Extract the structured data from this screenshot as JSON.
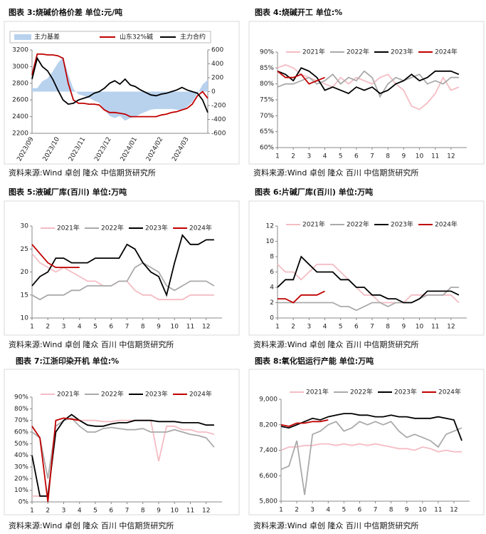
{
  "chart_data": [
    {
      "type": "line",
      "title": "图表 3:烧碱价格价差 单位:元/吨",
      "source": "资料来源:Wind 卓创 隆众 中信期货研究所",
      "categories": [
        "2023/09",
        null,
        null,
        null,
        null,
        "2023/10",
        null,
        null,
        null,
        null,
        "2023/11",
        null,
        null,
        null,
        null,
        "2023/12",
        null,
        null,
        null,
        null,
        "2024/01",
        null,
        null,
        null,
        null,
        "2024/02",
        null,
        null,
        null,
        null,
        "2024/03",
        null,
        null,
        null,
        null
      ],
      "ylim": [
        2200,
        3200
      ],
      "yticks": [
        2200,
        2400,
        2600,
        2800,
        3000,
        3200
      ],
      "y2lim": [
        -600,
        600
      ],
      "y2ticks": [
        -600,
        -400,
        -200,
        0,
        200,
        400,
        600
      ],
      "series": [
        {
          "name": "主力基差",
          "color": "#b8d2ee",
          "kind": "area",
          "axis": "y2",
          "values": [
            50,
            50,
            150,
            190,
            290,
            410,
            500,
            250,
            40,
            -40,
            -60,
            -90,
            -130,
            -160,
            -260,
            -350,
            -380,
            -350,
            -420,
            -380,
            -360,
            -320,
            -290,
            -260,
            -250,
            -250,
            -250,
            -250,
            -260,
            -270,
            -220,
            -150,
            -30,
            100,
            170
          ]
        },
        {
          "name": "山东32%碱",
          "color": "#c00000",
          "values": [
            2900,
            3150,
            3150,
            3140,
            3140,
            3130,
            3100,
            2800,
            2600,
            2560,
            2560,
            2550,
            2550,
            2540,
            2480,
            2450,
            2450,
            2440,
            2430,
            2400,
            2400,
            2400,
            2400,
            2400,
            2400,
            2420,
            2430,
            2450,
            2460,
            2480,
            2500,
            2550,
            2650,
            2700,
            2620
          ]
        },
        {
          "name": "主力合约",
          "color": "#000000",
          "values": [
            2850,
            3100,
            3000,
            2950,
            2850,
            2720,
            2600,
            2550,
            2560,
            2600,
            2620,
            2640,
            2680,
            2700,
            2740,
            2800,
            2830,
            2790,
            2850,
            2780,
            2760,
            2720,
            2690,
            2660,
            2650,
            2670,
            2680,
            2700,
            2720,
            2750,
            2720,
            2700,
            2680,
            2600,
            2450
          ]
        }
      ]
    },
    {
      "type": "line",
      "title": "图表 4:烧碱开工 单位:%",
      "source": "资料来源:Wind 卓创 隆众 百川 中信期货研究所",
      "x": [
        1,
        1.5,
        2,
        2.5,
        3,
        3.5,
        4,
        4.5,
        5,
        5.5,
        6,
        6.5,
        7,
        7.5,
        8,
        8.5,
        9,
        9.5,
        10,
        10.5,
        11,
        11.5,
        12,
        12.5
      ],
      "xlim": [
        1,
        13
      ],
      "xticks": [
        1,
        2,
        3,
        4,
        5,
        6,
        7,
        8,
        9,
        10,
        11,
        12
      ],
      "ylim": [
        60,
        90
      ],
      "yticks": [
        {
          "value": 60,
          "label": "60%"
        },
        {
          "value": 65,
          "label": "65%"
        },
        {
          "value": 70,
          "label": "70%"
        },
        {
          "value": 75,
          "label": "75%"
        },
        {
          "value": 80,
          "label": "80%"
        },
        {
          "value": 85,
          "label": "85%"
        },
        {
          "value": 90,
          "label": "90%"
        }
      ],
      "series": [
        {
          "name": "2021年",
          "color": "#f4bcc4",
          "values": [
            85,
            86,
            85,
            83,
            82,
            81,
            80,
            79,
            82,
            80,
            82,
            81,
            80,
            82,
            83,
            80,
            78,
            73,
            72,
            74,
            77,
            82,
            78,
            79
          ]
        },
        {
          "name": "2022年",
          "color": "#aaaaaa",
          "values": [
            79,
            80,
            80,
            81,
            82,
            80,
            81,
            83,
            80,
            82,
            81,
            84,
            82,
            76,
            80,
            82,
            81,
            82,
            83,
            80,
            81,
            80,
            82,
            82
          ]
        },
        {
          "name": "2023年",
          "color": "#000000",
          "values": [
            84,
            83,
            81,
            85,
            84,
            82,
            78,
            79,
            78,
            77,
            79,
            78,
            79,
            77,
            78,
            80,
            81,
            83,
            81,
            82,
            84,
            84,
            84,
            83
          ]
        },
        {
          "name": "2024年",
          "color": "#c00000",
          "values": [
            84,
            82,
            82,
            83,
            80,
            81,
            82,
            null,
            null,
            null,
            null,
            null,
            null,
            null,
            null,
            null,
            null,
            null,
            null,
            null,
            null,
            null,
            null,
            null
          ]
        }
      ]
    },
    {
      "type": "line",
      "title": "图表 5:液碱厂库(百川) 单位:万吨",
      "source": "资料来源:Wind 卓创 隆众 百川 中信期货研究所",
      "x": [
        1,
        1.5,
        2,
        2.5,
        3,
        3.5,
        4,
        4.5,
        5,
        5.5,
        6,
        6.5,
        7,
        7.5,
        8,
        8.5,
        9,
        9.5,
        10,
        10.5,
        11,
        11.5,
        12,
        12.5
      ],
      "xlim": [
        1,
        13
      ],
      "xticks": [
        1,
        2,
        3,
        4,
        5,
        6,
        7,
        8,
        9,
        10,
        11,
        12
      ],
      "ylim": [
        10,
        30
      ],
      "yticks": [
        10,
        15,
        20,
        25,
        30
      ],
      "series": [
        {
          "name": "2021年",
          "color": "#f4bcc4",
          "values": [
            24,
            22,
            21,
            20,
            21,
            20,
            19,
            18,
            18,
            17,
            17,
            18,
            18,
            16,
            15,
            15,
            14,
            14,
            14,
            14,
            15,
            15,
            15,
            15
          ]
        },
        {
          "name": "2022年",
          "color": "#aaaaaa",
          "values": [
            15,
            14,
            15,
            15,
            15,
            16,
            16,
            17,
            17,
            17,
            17,
            18,
            18,
            21,
            22,
            21,
            20,
            17,
            16,
            17,
            18,
            18,
            18,
            17
          ]
        },
        {
          "name": "2023年",
          "color": "#000000",
          "values": [
            17,
            19,
            20,
            23,
            23,
            22,
            22,
            22,
            23,
            23,
            23,
            23,
            26,
            25,
            22,
            20,
            19,
            15,
            22,
            28,
            26,
            26,
            27,
            27
          ]
        },
        {
          "name": "2024年",
          "color": "#c00000",
          "values": [
            26,
            24,
            22,
            21,
            21,
            21,
            21,
            null,
            null,
            null,
            null,
            null,
            null,
            null,
            null,
            null,
            null,
            null,
            null,
            null,
            null,
            null,
            null,
            null
          ]
        }
      ]
    },
    {
      "type": "line",
      "title": "图表 6:片碱厂库(百川) 单位:万吨",
      "source": "资料来源:Wind 卓创 隆众 百川 中信期货研究所",
      "x": [
        1,
        1.5,
        2,
        2.5,
        3,
        3.5,
        4,
        4.5,
        5,
        5.5,
        6,
        6.5,
        7,
        7.5,
        8,
        8.5,
        9,
        9.5,
        10,
        10.5,
        11,
        11.5,
        12,
        12.5
      ],
      "xlim": [
        1,
        13
      ],
      "xticks": [
        1,
        2,
        3,
        4,
        5,
        6,
        7,
        8,
        9,
        10,
        11,
        12
      ],
      "ylim": [
        0,
        12
      ],
      "yticks": [
        0,
        2,
        4,
        6,
        8,
        10,
        12
      ],
      "series": [
        {
          "name": "2021年",
          "color": "#f4bcc4",
          "values": [
            7,
            6,
            6,
            5,
            6,
            7,
            7,
            7,
            6,
            5,
            4,
            3,
            3,
            2,
            2,
            2,
            2,
            3,
            3,
            3,
            3,
            3,
            3,
            2
          ]
        },
        {
          "name": "2022年",
          "color": "#aaaaaa",
          "values": [
            2,
            2,
            2,
            2,
            2,
            2,
            2,
            2,
            1.5,
            1.5,
            1,
            1.5,
            2,
            2,
            1.5,
            2,
            2,
            2,
            2.5,
            3,
            3,
            3,
            4,
            4
          ]
        },
        {
          "name": "2023年",
          "color": "#000000",
          "values": [
            4,
            5,
            5,
            8,
            7,
            6,
            6,
            6,
            5,
            5,
            4,
            4,
            3,
            3,
            2.5,
            2.5,
            2,
            2,
            2.5,
            3.5,
            3.5,
            3.5,
            3.5,
            3
          ]
        },
        {
          "name": "2024年",
          "color": "#c00000",
          "values": [
            2.5,
            2.5,
            2,
            3,
            3,
            3,
            3.5,
            null,
            null,
            null,
            null,
            null,
            null,
            null,
            null,
            null,
            null,
            null,
            null,
            null,
            null,
            null,
            null,
            null
          ]
        }
      ]
    },
    {
      "type": "line",
      "title": "图表 7:江浙印染开机 单位:%",
      "source": "资料来源:Wind 卓创 隆众 百川 中信期货研究所",
      "x": [
        1,
        1.5,
        2,
        2.5,
        3,
        3.5,
        4,
        4.5,
        5,
        5.5,
        6,
        6.5,
        7,
        7.5,
        8,
        8.5,
        9,
        9.5,
        10,
        10.5,
        11,
        11.5,
        12,
        12.5
      ],
      "xlim": [
        1,
        13
      ],
      "xticks": [
        1,
        2,
        3,
        4,
        5,
        6,
        7,
        8,
        9,
        10,
        11,
        12
      ],
      "ylim": [
        0,
        90
      ],
      "yticks": [
        {
          "value": 0,
          "label": "0%"
        },
        {
          "value": 10,
          "label": "10%"
        },
        {
          "value": 20,
          "label": "20%"
        },
        {
          "value": 30,
          "label": "30%"
        },
        {
          "value": 40,
          "label": "40%"
        },
        {
          "value": 50,
          "label": "50%"
        },
        {
          "value": 60,
          "label": "60%"
        },
        {
          "value": 70,
          "label": "70%"
        },
        {
          "value": 80,
          "label": "80%"
        },
        {
          "value": 90,
          "label": "90%"
        }
      ],
      "series": [
        {
          "name": "2021年",
          "color": "#f4bcc4",
          "values": [
            5,
            5,
            5,
            65,
            70,
            72,
            70,
            70,
            70,
            69,
            69,
            70,
            70,
            70,
            70,
            70,
            35,
            65,
            65,
            62,
            62,
            60,
            60,
            58
          ]
        },
        {
          "name": "2022年",
          "color": "#aaaaaa",
          "values": [
            60,
            55,
            20,
            65,
            70,
            72,
            65,
            60,
            60,
            63,
            64,
            63,
            62,
            62,
            63,
            60,
            60,
            60,
            62,
            60,
            58,
            57,
            55,
            47
          ]
        },
        {
          "name": "2023年",
          "color": "#000000",
          "values": [
            40,
            5,
            5,
            60,
            70,
            75,
            70,
            66,
            65,
            65,
            67,
            68,
            68,
            70,
            70,
            70,
            69,
            69,
            69,
            68,
            68,
            68,
            66,
            66
          ]
        },
        {
          "name": "2024年",
          "color": "#c00000",
          "values": [
            65,
            55,
            0,
            70,
            72,
            71,
            70,
            null,
            null,
            null,
            null,
            null,
            null,
            null,
            null,
            null,
            null,
            null,
            null,
            null,
            null,
            null,
            null,
            null
          ]
        }
      ]
    },
    {
      "type": "line",
      "title": "图表 8:氧化铝运行产能 单位:万吨",
      "source": "资料来源:Wind 卓创 隆众 百川 中信期货研究所",
      "x": [
        1,
        1.5,
        2,
        2.5,
        3,
        3.5,
        4,
        4.5,
        5,
        5.5,
        6,
        6.5,
        7,
        7.5,
        8,
        8.5,
        9,
        9.5,
        10,
        10.5,
        11,
        11.5,
        12,
        12.5
      ],
      "xlim": [
        1,
        13
      ],
      "xticks": [
        1,
        2,
        3,
        4,
        5,
        6,
        7,
        8,
        9,
        10,
        11,
        12
      ],
      "ylim": [
        5800,
        9000
      ],
      "yticks": [
        {
          "value": 5800,
          "label": "5,800"
        },
        {
          "value": 6600,
          "label": "6,600"
        },
        {
          "value": 7400,
          "label": "7,400"
        },
        {
          "value": 8200,
          "label": "8,200"
        },
        {
          "value": 9000,
          "label": "9,000"
        }
      ],
      "series": [
        {
          "name": "2021年",
          "color": "#f4bcc4",
          "values": [
            7400,
            7500,
            7500,
            7550,
            7550,
            7600,
            7600,
            7550,
            7600,
            7550,
            7600,
            7550,
            7600,
            7550,
            7500,
            7450,
            7450,
            7400,
            7500,
            7450,
            7350,
            7400,
            7350,
            7350
          ]
        },
        {
          "name": "2022年",
          "color": "#aaaaaa",
          "values": [
            6800,
            6900,
            7700,
            6000,
            7900,
            8000,
            8200,
            8300,
            8000,
            8100,
            8300,
            8200,
            8300,
            8200,
            8300,
            8000,
            7800,
            7900,
            7800,
            7700,
            7500,
            7900,
            8000,
            8100
          ]
        },
        {
          "name": "2023年",
          "color": "#000000",
          "values": [
            8150,
            8100,
            8200,
            8300,
            8400,
            8350,
            8450,
            8500,
            8550,
            8550,
            8500,
            8500,
            8450,
            8450,
            8500,
            8450,
            8450,
            8400,
            8400,
            8400,
            8450,
            8400,
            8350,
            7700
          ]
        },
        {
          "name": "2024年",
          "color": "#c00000",
          "values": [
            8200,
            8150,
            8250,
            8250,
            8300,
            8300,
            8350,
            null,
            null,
            null,
            null,
            null,
            null,
            null,
            null,
            null,
            null,
            null,
            null,
            null,
            null,
            null,
            null,
            null
          ]
        }
      ]
    }
  ]
}
